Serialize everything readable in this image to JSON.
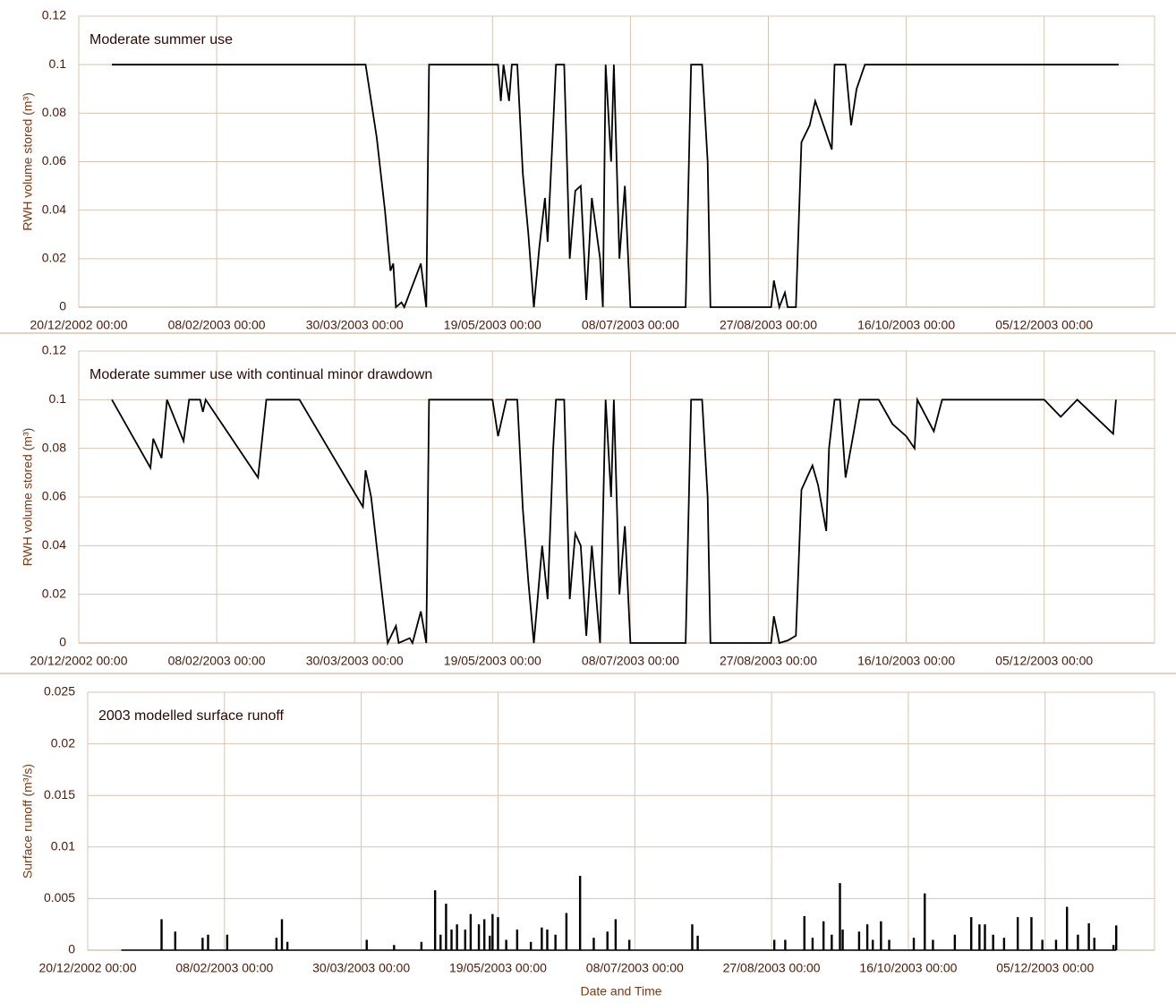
{
  "chart_data": [
    {
      "type": "line",
      "title": "Moderate summer use",
      "ylabel": "RWH volume stored (m³)",
      "color": "#000000",
      "grid": true,
      "xlim": [
        "20/12/2002 00:00",
        "14/01/2004 00:00"
      ],
      "xticks": [
        "20/12/2002 00:00",
        "08/02/2003 00:00",
        "30/03/2003 00:00",
        "19/05/2003 00:00",
        "08/07/2003 00:00",
        "27/08/2003 00:00",
        "16/10/2003 00:00",
        "05/12/2003 00:00"
      ],
      "ylim": [
        0,
        0.12
      ],
      "yticks": [
        0,
        0.02,
        0.04,
        0.06,
        0.08,
        0.1,
        0.12
      ],
      "x": [
        "01/01/2003 00:00",
        "03/04/2003 00:00",
        "07/04/2003 00:00",
        "10/04/2003 00:00",
        "12/04/2003 00:00",
        "13/04/2003 00:00",
        "14/04/2003 00:00",
        "16/04/2003 00:00",
        "17/04/2003 00:00",
        "23/04/2003 00:00",
        "25/04/2003 00:00",
        "26/04/2003 00:00",
        "21/05/2003 00:00",
        "22/05/2003 00:00",
        "23/05/2003 00:00",
        "25/05/2003 00:00",
        "26/05/2003 00:00",
        "28/05/2003 00:00",
        "30/05/2003 00:00",
        "01/06/2003 00:00",
        "03/06/2003 00:00",
        "05/06/2003 00:00",
        "07/06/2003 00:00",
        "08/06/2003 00:00",
        "10/06/2003 00:00",
        "11/06/2003 00:00",
        "14/06/2003 00:00",
        "16/06/2003 00:00",
        "18/06/2003 00:00",
        "20/06/2003 00:00",
        "22/06/2003 00:00",
        "24/06/2003 00:00",
        "27/06/2003 00:00",
        "28/06/2003 00:00",
        "29/06/2003 00:00",
        "01/07/2003 00:00",
        "02/07/2003 00:00",
        "04/07/2003 00:00",
        "06/07/2003 00:00",
        "08/07/2003 00:00",
        "28/07/2003 00:00",
        "30/07/2003 00:00",
        "03/08/2003 00:00",
        "05/08/2003 00:00",
        "06/08/2003 00:00",
        "28/08/2003 00:00",
        "29/08/2003 00:00",
        "31/08/2003 00:00",
        "02/09/2003 00:00",
        "03/09/2003 00:00",
        "06/09/2003 00:00",
        "08/09/2003 00:00",
        "11/09/2003 00:00",
        "13/09/2003 00:00",
        "16/09/2003 00:00",
        "19/09/2003 00:00",
        "20/09/2003 00:00",
        "24/09/2003 00:00",
        "26/09/2003 00:00",
        "28/09/2003 00:00",
        "01/10/2003 00:00",
        "01/01/2004 00:00"
      ],
      "values": [
        0.1,
        0.1,
        0.07,
        0.04,
        0.015,
        0.018,
        0,
        0.002,
        0,
        0.018,
        0,
        0.1,
        0.1,
        0.085,
        0.1,
        0.085,
        0.1,
        0.1,
        0.055,
        0.03,
        0,
        0.025,
        0.045,
        0.027,
        0.075,
        0.1,
        0.1,
        0.02,
        0.048,
        0.05,
        0.003,
        0.045,
        0.02,
        0,
        0.1,
        0.06,
        0.1,
        0.02,
        0.05,
        0,
        0,
        0.1,
        0.1,
        0.06,
        0,
        0,
        0.011,
        0,
        0.006,
        0,
        0,
        0.068,
        0.075,
        0.085,
        0.075,
        0.065,
        0.1,
        0.1,
        0.075,
        0.09,
        0.1,
        0.1
      ]
    },
    {
      "type": "line",
      "title": "Moderate summer use with continual minor drawdown",
      "ylabel": "RWH volume stored (m³)",
      "color": "#000000",
      "grid": true,
      "xlim": [
        "20/12/2002 00:00",
        "14/01/2004 00:00"
      ],
      "xticks": [
        "20/12/2002 00:00",
        "08/02/2003 00:00",
        "30/03/2003 00:00",
        "19/05/2003 00:00",
        "08/07/2003 00:00",
        "27/08/2003 00:00",
        "16/10/2003 00:00",
        "05/12/2003 00:00"
      ],
      "ylim": [
        0,
        0.12
      ],
      "yticks": [
        0,
        0.02,
        0.04,
        0.06,
        0.08,
        0.1,
        0.12
      ],
      "x": [
        "01/01/2003 00:00",
        "15/01/2003 00:00",
        "16/01/2003 00:00",
        "19/01/2003 00:00",
        "21/01/2003 00:00",
        "27/01/2003 00:00",
        "29/01/2003 00:00",
        "02/02/2003 00:00",
        "03/02/2003 00:00",
        "04/02/2003 00:00",
        "23/02/2003 00:00",
        "26/02/2003 00:00",
        "10/03/2003 00:00",
        "02/04/2003 00:00",
        "03/04/2003 00:00",
        "05/04/2003 00:00",
        "09/04/2003 00:00",
        "11/04/2003 00:00",
        "14/04/2003 00:00",
        "15/04/2003 00:00",
        "19/04/2003 00:00",
        "20/04/2003 00:00",
        "23/04/2003 00:00",
        "25/04/2003 00:00",
        "26/04/2003 00:00",
        "19/05/2003 00:00",
        "21/05/2003 00:00",
        "24/05/2003 00:00",
        "28/05/2003 00:00",
        "30/05/2003 00:00",
        "01/06/2003 00:00",
        "03/06/2003 00:00",
        "06/06/2003 00:00",
        "08/06/2003 00:00",
        "10/06/2003 00:00",
        "11/06/2003 00:00",
        "14/06/2003 00:00",
        "16/06/2003 00:00",
        "18/06/2003 00:00",
        "20/06/2003 00:00",
        "22/06/2003 00:00",
        "24/06/2003 00:00",
        "27/06/2003 00:00",
        "29/06/2003 00:00",
        "01/07/2003 00:00",
        "02/07/2003 00:00",
        "04/07/2003 00:00",
        "06/07/2003 00:00",
        "08/07/2003 00:00",
        "28/07/2003 00:00",
        "30/07/2003 00:00",
        "03/08/2003 00:00",
        "05/08/2003 00:00",
        "06/08/2003 00:00",
        "28/08/2003 00:00",
        "29/08/2003 00:00",
        "31/08/2003 00:00",
        "03/09/2003 00:00",
        "06/09/2003 00:00",
        "08/09/2003 00:00",
        "12/09/2003 00:00",
        "14/09/2003 00:00",
        "17/09/2003 00:00",
        "18/09/2003 00:00",
        "20/09/2003 00:00",
        "22/09/2003 00:00",
        "24/09/2003 00:00",
        "27/09/2003 00:00",
        "29/09/2003 00:00",
        "06/10/2003 00:00",
        "11/10/2003 00:00",
        "16/10/2003 00:00",
        "19/10/2003 00:00",
        "20/10/2003 00:00",
        "26/10/2003 00:00",
        "29/10/2003 00:00",
        "05/11/2003 00:00",
        "05/12/2003 00:00",
        "11/12/2003 00:00",
        "17/12/2003 00:00",
        "30/12/2003 00:00",
        "31/12/2003 00:00"
      ],
      "values": [
        0.1,
        0.072,
        0.084,
        0.076,
        0.1,
        0.083,
        0.1,
        0.1,
        0.095,
        0.1,
        0.068,
        0.1,
        0.1,
        0.056,
        0.071,
        0.06,
        0.02,
        0,
        0.007,
        0,
        0.002,
        0,
        0.013,
        0,
        0.1,
        0.1,
        0.085,
        0.1,
        0.1,
        0.055,
        0.025,
        0,
        0.04,
        0.018,
        0.08,
        0.1,
        0.1,
        0.018,
        0.045,
        0.04,
        0.003,
        0.04,
        0,
        0.1,
        0.06,
        0.1,
        0.02,
        0.048,
        0,
        0,
        0.1,
        0.1,
        0.06,
        0,
        0,
        0.011,
        0,
        0.001,
        0.003,
        0.063,
        0.073,
        0.065,
        0.046,
        0.08,
        0.1,
        0.1,
        0.068,
        0.087,
        0.1,
        0.1,
        0.09,
        0.085,
        0.08,
        0.1,
        0.087,
        0.1,
        0.1,
        0.1,
        0.093,
        0.1,
        0.086,
        0.1
      ]
    },
    {
      "type": "bar",
      "title": "2003 modelled surface runoff",
      "ylabel": "Surface runoff (m³/s)",
      "xlabel": "Date and Time",
      "color": "#000000",
      "grid": true,
      "xlim": [
        "20/12/2002 00:00",
        "14/01/2004 00:00"
      ],
      "xticks": [
        "20/12/2002 00:00",
        "08/02/2003 00:00",
        "30/03/2003 00:00",
        "19/05/2003 00:00",
        "08/07/2003 00:00",
        "27/08/2003 00:00",
        "16/10/2003 00:00",
        "05/12/2003 00:00"
      ],
      "ylim": [
        0,
        0.025
      ],
      "yticks": [
        0,
        0.005,
        0.01,
        0.015,
        0.02,
        0.025
      ],
      "x": [
        "16/01/2003 00:00",
        "21/01/2003 00:00",
        "31/01/2003 00:00",
        "02/02/2003 00:00",
        "09/02/2003 00:00",
        "27/02/2003 00:00",
        "01/03/2003 00:00",
        "03/03/2003 00:00",
        "01/04/2003 00:00",
        "11/04/2003 00:00",
        "21/04/2003 00:00",
        "26/04/2003 00:00",
        "28/04/2003 00:00",
        "30/04/2003 00:00",
        "02/05/2003 00:00",
        "04/05/2003 00:00",
        "07/05/2003 00:00",
        "09/05/2003 00:00",
        "12/05/2003 00:00",
        "14/05/2003 00:00",
        "16/05/2003 00:00",
        "17/05/2003 00:00",
        "19/05/2003 00:00",
        "22/05/2003 00:00",
        "26/05/2003 00:00",
        "31/05/2003 00:00",
        "04/06/2003 00:00",
        "06/06/2003 00:00",
        "09/06/2003 00:00",
        "13/06/2003 00:00",
        "18/06/2003 00:00",
        "23/06/2003 00:00",
        "28/06/2003 00:00",
        "01/07/2003 00:00",
        "06/07/2003 00:00",
        "29/07/2003 00:00",
        "31/07/2003 00:00",
        "28/08/2003 00:00",
        "01/09/2003 00:00",
        "08/09/2003 00:00",
        "11/09/2003 00:00",
        "15/09/2003 00:00",
        "18/09/2003 00:00",
        "21/09/2003 00:00",
        "22/09/2003 00:00",
        "28/09/2003 00:00",
        "01/10/2003 00:00",
        "03/10/2003 00:00",
        "06/10/2003 00:00",
        "09/10/2003 00:00",
        "18/10/2003 00:00",
        "22/10/2003 00:00",
        "25/10/2003 00:00",
        "02/11/2003 00:00",
        "08/11/2003 00:00",
        "11/11/2003 00:00",
        "13/11/2003 00:00",
        "16/11/2003 00:00",
        "20/11/2003 00:00",
        "25/11/2003 00:00",
        "30/11/2003 00:00",
        "04/12/2003 00:00",
        "09/12/2003 00:00",
        "13/12/2003 00:00",
        "17/12/2003 00:00",
        "21/12/2003 00:00",
        "23/12/2003 00:00",
        "30/12/2003 00:00",
        "31/12/2003 00:00"
      ],
      "values": [
        0.003,
        0.0018,
        0.0012,
        0.0015,
        0.0015,
        0.0012,
        0.003,
        0.0008,
        0.001,
        0.0005,
        0.0008,
        0.0058,
        0.0015,
        0.0045,
        0.002,
        0.0025,
        0.002,
        0.0035,
        0.0025,
        0.003,
        0.0014,
        0.0035,
        0.0032,
        0.001,
        0.002,
        0.0008,
        0.0022,
        0.002,
        0.0015,
        0.0036,
        0.0072,
        0.0012,
        0.0018,
        0.003,
        0.001,
        0.0025,
        0.0014,
        0.001,
        0.001,
        0.0033,
        0.0012,
        0.0028,
        0.0015,
        0.0065,
        0.002,
        0.0018,
        0.0025,
        0.001,
        0.0028,
        0.001,
        0.0012,
        0.0055,
        0.001,
        0.0015,
        0.0032,
        0.0025,
        0.0025,
        0.0015,
        0.0012,
        0.0032,
        0.0032,
        0.001,
        0.001,
        0.0042,
        0.0015,
        0.0026,
        0.0012,
        0.0005,
        0.0024
      ]
    }
  ]
}
